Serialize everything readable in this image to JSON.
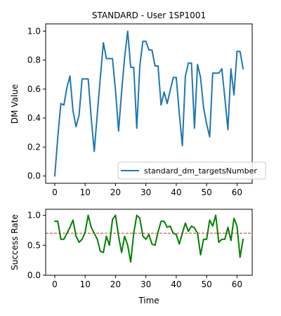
{
  "chart_data": [
    {
      "type": "line",
      "title": "STANDARD - User 1SP1001",
      "xlabel": "",
      "ylabel": "DM Value",
      "xlim": [
        -3,
        65
      ],
      "ylim": [
        -0.05,
        1.05
      ],
      "xticks": [
        0,
        10,
        20,
        30,
        40,
        50,
        60
      ],
      "yticks": [
        0.0,
        0.2,
        0.4,
        0.6,
        0.8,
        1.0
      ],
      "ytick_labels": [
        "0.0",
        "0.2",
        "0.4",
        "0.6",
        "0.8",
        "1.0"
      ],
      "legend_position": "lower-right",
      "grid": false,
      "series": [
        {
          "name": "standard_dm_targetsNumber",
          "color": "#1f77b4",
          "x": [
            0,
            1,
            2,
            3,
            4,
            5,
            6,
            7,
            8,
            9,
            10,
            11,
            12,
            13,
            14,
            15,
            16,
            17,
            18,
            19,
            20,
            21,
            22,
            23,
            24,
            25,
            26,
            27,
            28,
            29,
            30,
            31,
            32,
            33,
            34,
            35,
            36,
            37,
            38,
            39,
            40,
            41,
            42,
            43,
            44,
            45,
            46,
            47,
            48,
            49,
            50,
            51,
            52,
            53,
            54,
            55,
            56,
            57,
            58,
            59,
            60,
            61,
            62
          ],
          "y": [
            0.0,
            0.27,
            0.5,
            0.49,
            0.61,
            0.69,
            0.45,
            0.34,
            0.42,
            0.67,
            0.67,
            0.67,
            0.4,
            0.17,
            0.43,
            0.68,
            0.92,
            0.81,
            0.81,
            0.81,
            0.59,
            0.31,
            0.58,
            0.82,
            1.0,
            0.75,
            0.75,
            0.33,
            0.76,
            0.93,
            0.93,
            0.87,
            0.87,
            0.76,
            0.76,
            0.49,
            0.58,
            0.5,
            0.59,
            0.68,
            0.68,
            0.43,
            0.21,
            0.69,
            0.78,
            0.78,
            0.33,
            0.77,
            0.68,
            0.47,
            0.36,
            0.27,
            0.71,
            0.71,
            0.71,
            0.74,
            0.54,
            0.32,
            0.74,
            0.56,
            0.86,
            0.86,
            0.74
          ]
        }
      ]
    },
    {
      "type": "line",
      "title": "",
      "xlabel": "Time",
      "ylabel": "Success Rate",
      "xlim": [
        -3,
        65
      ],
      "ylim": [
        0,
        1.1
      ],
      "xticks": [
        0,
        10,
        20,
        30,
        40,
        50,
        60
      ],
      "yticks": [
        0.0,
        0.5,
        1.0
      ],
      "ytick_labels": [
        "0.0",
        "0.5",
        "1.0"
      ],
      "grid": false,
      "reference_line": {
        "y": 0.7,
        "color": "#d62728",
        "style": "dashed"
      },
      "series": [
        {
          "color": "#008000",
          "x": [
            0,
            1,
            2,
            3,
            4,
            5,
            6,
            7,
            8,
            9,
            10,
            11,
            12,
            13,
            14,
            15,
            16,
            17,
            18,
            19,
            20,
            21,
            22,
            23,
            24,
            25,
            26,
            27,
            28,
            29,
            30,
            31,
            32,
            33,
            34,
            35,
            36,
            37,
            38,
            39,
            40,
            41,
            42,
            43,
            44,
            45,
            46,
            47,
            48,
            49,
            50,
            51,
            52,
            53,
            54,
            55,
            56,
            57,
            58,
            59,
            60,
            61,
            62
          ],
          "y": [
            0.9,
            0.9,
            0.6,
            0.6,
            0.7,
            0.8,
            0.92,
            0.65,
            0.55,
            0.6,
            0.72,
            1.0,
            0.8,
            0.7,
            0.6,
            0.4,
            0.38,
            0.65,
            0.5,
            0.93,
            1.0,
            0.65,
            0.38,
            0.65,
            0.5,
            0.22,
            0.7,
            1.0,
            0.95,
            0.65,
            0.6,
            0.68,
            0.52,
            0.5,
            0.72,
            0.9,
            0.9,
            0.8,
            0.82,
            0.7,
            0.68,
            0.52,
            0.7,
            0.87,
            0.73,
            0.82,
            0.79,
            0.7,
            0.34,
            0.6,
            0.6,
            0.92,
            0.82,
            1.0,
            0.55,
            0.6,
            0.6,
            0.8,
            0.58,
            0.95,
            0.82,
            0.3,
            0.6
          ]
        }
      ]
    }
  ]
}
